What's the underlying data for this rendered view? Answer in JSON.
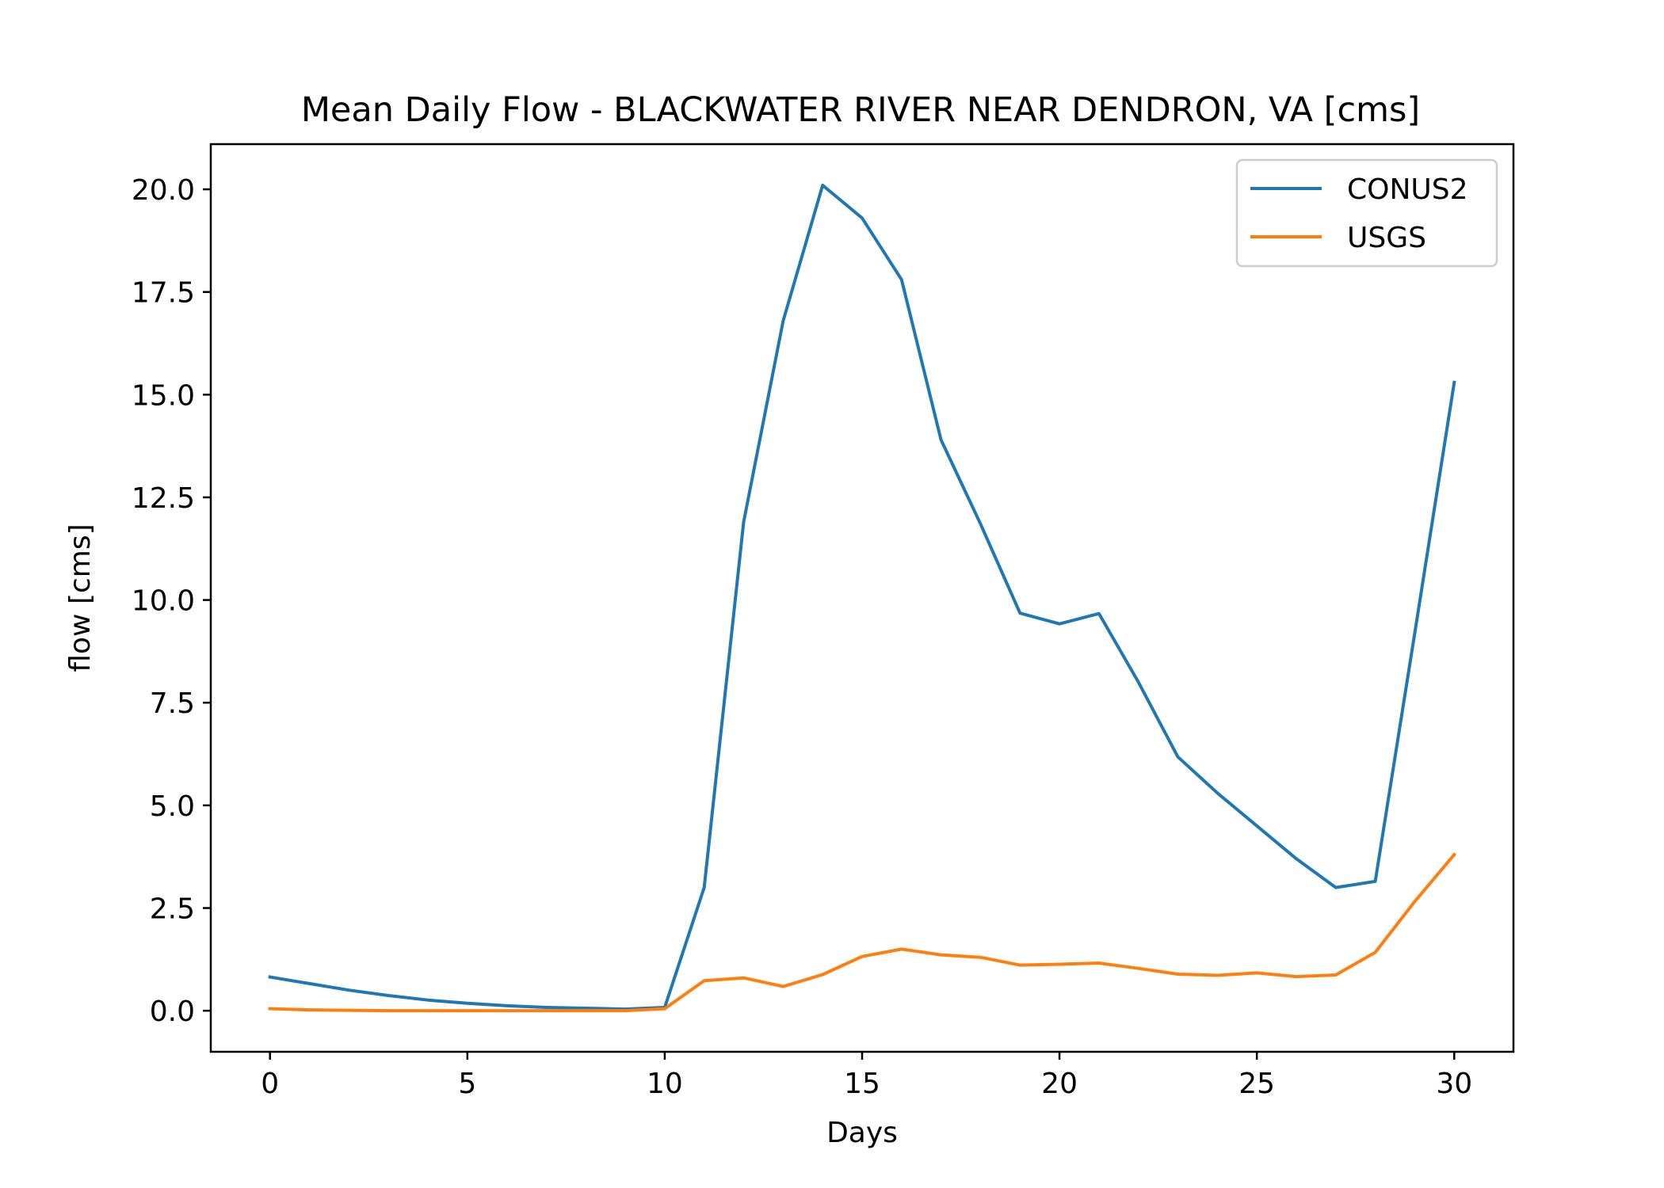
{
  "chart_data": {
    "type": "line",
    "title": "Mean Daily Flow - BLACKWATER RIVER NEAR DENDRON, VA [cms]",
    "xlabel": "Days",
    "ylabel": "flow [cms]",
    "xlim": [
      -1.5,
      31.5
    ],
    "ylim": [
      -1.0,
      21.1
    ],
    "xticks": [
      0,
      5,
      10,
      15,
      20,
      25,
      30
    ],
    "xtick_labels": [
      "0",
      "5",
      "10",
      "15",
      "20",
      "25",
      "30"
    ],
    "yticks": [
      0,
      2.5,
      5,
      7.5,
      10,
      12.5,
      15,
      17.5,
      20
    ],
    "ytick_labels": [
      "0.0",
      "2.5",
      "5.0",
      "7.5",
      "10.0",
      "12.5",
      "15.0",
      "17.5",
      "20.0"
    ],
    "grid": false,
    "legend_position": "top-right",
    "x": [
      0,
      1,
      2,
      3,
      4,
      5,
      6,
      7,
      8,
      9,
      10,
      11,
      12,
      13,
      14,
      15,
      16,
      17,
      18,
      19,
      20,
      21,
      22,
      23,
      24,
      25,
      26,
      27,
      28,
      29,
      30
    ],
    "series": [
      {
        "name": "CONUS2",
        "color": "#1f77b4",
        "values": [
          0.82,
          0.66,
          0.5,
          0.37,
          0.26,
          0.18,
          0.12,
          0.08,
          0.06,
          0.04,
          0.08,
          3.0,
          11.9,
          16.8,
          20.1,
          19.3,
          17.8,
          13.9,
          11.85,
          9.68,
          9.42,
          9.67,
          8.0,
          6.18,
          5.3,
          4.5,
          3.7,
          3.0,
          3.15,
          9.2,
          15.3
        ]
      },
      {
        "name": "USGS",
        "color": "#ff7f0e",
        "values": [
          0.05,
          0.02,
          0.01,
          0.0,
          0.0,
          0.0,
          0.0,
          0.0,
          0.0,
          0.0,
          0.05,
          0.73,
          0.8,
          0.59,
          0.88,
          1.32,
          1.5,
          1.36,
          1.3,
          1.11,
          1.13,
          1.16,
          1.03,
          0.89,
          0.86,
          0.92,
          0.83,
          0.87,
          1.42,
          2.66,
          3.8
        ]
      }
    ]
  }
}
